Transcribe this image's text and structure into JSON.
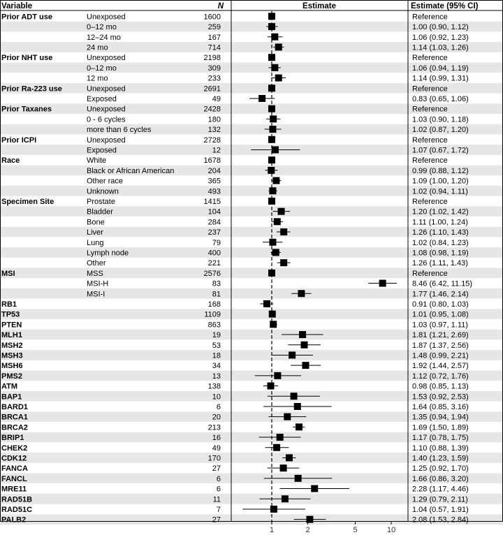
{
  "header": {
    "variable": "Variable",
    "n": "N",
    "estimate": "Estimate",
    "ci": "Estimate (95% CI)"
  },
  "colors": {
    "band": "#e6e6e6",
    "marker": "#000000",
    "line": "#000000"
  },
  "chart_data": {
    "type": "forest",
    "x_scale": "log",
    "reference_line": 1,
    "xlim": [
      0.6,
      12
    ],
    "x_ticks": [
      1,
      2,
      5,
      10
    ],
    "rows": [
      {
        "group": "Prior ADT use",
        "level": "Unexposed",
        "n": "1600",
        "est": 1.0,
        "lo": null,
        "hi": null,
        "ci": "Reference"
      },
      {
        "group": "",
        "level": "0–12 mo",
        "n": "259",
        "est": 1.0,
        "lo": 0.9,
        "hi": 1.12,
        "ci": "1.00 (0.90, 1.12)"
      },
      {
        "group": "",
        "level": "12–24 mo",
        "n": "167",
        "est": 1.06,
        "lo": 0.92,
        "hi": 1.23,
        "ci": "1.06 (0.92, 1.23)"
      },
      {
        "group": "",
        "level": "24 mo",
        "n": "714",
        "est": 1.14,
        "lo": 1.03,
        "hi": 1.26,
        "ci": "1.14 (1.03, 1.26)"
      },
      {
        "group": "Prior NHT use",
        "level": "Unexposed",
        "n": "2198",
        "est": 1.0,
        "lo": null,
        "hi": null,
        "ci": "Reference"
      },
      {
        "group": "",
        "level": "0–12 mo",
        "n": "309",
        "est": 1.06,
        "lo": 0.94,
        "hi": 1.19,
        "ci": "1.06 (0.94, 1.19)"
      },
      {
        "group": "",
        "level": "12 mo",
        "n": "233",
        "est": 1.14,
        "lo": 0.99,
        "hi": 1.31,
        "ci": "1.14 (0.99, 1.31)"
      },
      {
        "group": "Prior Ra-223 use",
        "level": "Unexposed",
        "n": "2691",
        "est": 1.0,
        "lo": null,
        "hi": null,
        "ci": "Reference"
      },
      {
        "group": "",
        "level": "Exposed",
        "n": "49",
        "est": 0.83,
        "lo": 0.65,
        "hi": 1.06,
        "ci": "0.83 (0.65, 1.06)"
      },
      {
        "group": "Prior Taxanes",
        "level": "Unexposed",
        "n": "2428",
        "est": 1.0,
        "lo": null,
        "hi": null,
        "ci": "Reference"
      },
      {
        "group": "",
        "level": "0 - 6 cycles",
        "n": "180",
        "est": 1.03,
        "lo": 0.9,
        "hi": 1.18,
        "ci": "1.03 (0.90, 1.18)"
      },
      {
        "group": "",
        "level": "more than 6 cycles",
        "n": "132",
        "est": 1.02,
        "lo": 0.87,
        "hi": 1.2,
        "ci": "1.02 (0.87, 1.20)"
      },
      {
        "group": "Prior ICPI",
        "level": "Unexposed",
        "n": "2728",
        "est": 1.0,
        "lo": null,
        "hi": null,
        "ci": "Reference"
      },
      {
        "group": "",
        "level": "Exposed",
        "n": "12",
        "est": 1.07,
        "lo": 0.67,
        "hi": 1.72,
        "ci": "1.07 (0.67, 1.72)"
      },
      {
        "group": "Race",
        "level": "White",
        "n": "1678",
        "est": 1.0,
        "lo": null,
        "hi": null,
        "ci": "Reference"
      },
      {
        "group": "",
        "level": "Black or African American",
        "n": "204",
        "est": 0.99,
        "lo": 0.88,
        "hi": 1.12,
        "ci": "0.99 (0.88, 1.12)"
      },
      {
        "group": "",
        "level": "Other race",
        "n": "365",
        "est": 1.09,
        "lo": 1.0,
        "hi": 1.2,
        "ci": "1.09 (1.00, 1.20)"
      },
      {
        "group": "",
        "level": "Unknown",
        "n": "493",
        "est": 1.02,
        "lo": 0.94,
        "hi": 1.11,
        "ci": "1.02 (0.94, 1.11)"
      },
      {
        "group": "Specimen Site",
        "level": "Prostate",
        "n": "1415",
        "est": 1.0,
        "lo": null,
        "hi": null,
        "ci": "Reference"
      },
      {
        "group": "",
        "level": "Bladder",
        "n": "104",
        "est": 1.2,
        "lo": 1.02,
        "hi": 1.42,
        "ci": "1.20 (1.02, 1.42)"
      },
      {
        "group": "",
        "level": "Bone",
        "n": "284",
        "est": 1.11,
        "lo": 1.0,
        "hi": 1.24,
        "ci": "1.11 (1.00, 1.24)"
      },
      {
        "group": "",
        "level": "Liver",
        "n": "237",
        "est": 1.26,
        "lo": 1.1,
        "hi": 1.43,
        "ci": "1.26 (1.10, 1.43)"
      },
      {
        "group": "",
        "level": "Lung",
        "n": "79",
        "est": 1.02,
        "lo": 0.84,
        "hi": 1.23,
        "ci": "1.02 (0.84, 1.23)"
      },
      {
        "group": "",
        "level": "Lymph node",
        "n": "400",
        "est": 1.08,
        "lo": 0.98,
        "hi": 1.19,
        "ci": "1.08 (0.98, 1.19)"
      },
      {
        "group": "",
        "level": "Other",
        "n": "221",
        "est": 1.26,
        "lo": 1.11,
        "hi": 1.43,
        "ci": "1.26 (1.11, 1.43)"
      },
      {
        "group": "MSI",
        "level": "MSS",
        "n": "2576",
        "est": 1.0,
        "lo": null,
        "hi": null,
        "ci": "Reference"
      },
      {
        "group": "",
        "level": "MSI-H",
        "n": "83",
        "est": 8.46,
        "lo": 6.42,
        "hi": 11.15,
        "ci": "8.46 (6.42, 11.15)"
      },
      {
        "group": "",
        "level": "MSI-I",
        "n": "81",
        "est": 1.77,
        "lo": 1.46,
        "hi": 2.14,
        "ci": "1.77 (1.46, 2.14)"
      },
      {
        "group": "RB1",
        "level": "",
        "n": "168",
        "est": 0.91,
        "lo": 0.8,
        "hi": 1.03,
        "ci": "0.91 (0.80, 1.03)"
      },
      {
        "group": "TP53",
        "level": "",
        "n": "1109",
        "est": 1.01,
        "lo": 0.95,
        "hi": 1.08,
        "ci": "1.01 (0.95, 1.08)"
      },
      {
        "group": "PTEN",
        "level": "",
        "n": "863",
        "est": 1.03,
        "lo": 0.97,
        "hi": 1.11,
        "ci": "1.03 (0.97, 1.11)"
      },
      {
        "group": "MLH1",
        "level": "",
        "n": "19",
        "est": 1.81,
        "lo": 1.21,
        "hi": 2.69,
        "ci": "1.81 (1.21, 2.69)"
      },
      {
        "group": "MSH2",
        "level": "",
        "n": "53",
        "est": 1.87,
        "lo": 1.37,
        "hi": 2.56,
        "ci": "1.87 (1.37, 2.56)"
      },
      {
        "group": "MSH3",
        "level": "",
        "n": "18",
        "est": 1.48,
        "lo": 0.99,
        "hi": 2.21,
        "ci": "1.48 (0.99, 2.21)"
      },
      {
        "group": "MSH6",
        "level": "",
        "n": "34",
        "est": 1.92,
        "lo": 1.44,
        "hi": 2.57,
        "ci": "1.92 (1.44, 2.57)"
      },
      {
        "group": "PMS2",
        "level": "",
        "n": "13",
        "est": 1.12,
        "lo": 0.72,
        "hi": 1.76,
        "ci": "1.12 (0.72, 1.76)"
      },
      {
        "group": "ATM",
        "level": "",
        "n": "138",
        "est": 0.98,
        "lo": 0.85,
        "hi": 1.13,
        "ci": "0.98 (0.85, 1.13)"
      },
      {
        "group": "BAP1",
        "level": "",
        "n": "10",
        "est": 1.53,
        "lo": 0.92,
        "hi": 2.53,
        "ci": "1.53 (0.92, 2.53)"
      },
      {
        "group": "BARD1",
        "level": "",
        "n": "6",
        "est": 1.64,
        "lo": 0.85,
        "hi": 3.16,
        "ci": "1.64 (0.85, 3.16)"
      },
      {
        "group": "BRCA1",
        "level": "",
        "n": "20",
        "est": 1.35,
        "lo": 0.94,
        "hi": 1.94,
        "ci": "1.35 (0.94, 1.94)"
      },
      {
        "group": "BRCA2",
        "level": "",
        "n": "213",
        "est": 1.69,
        "lo": 1.5,
        "hi": 1.89,
        "ci": "1.69 (1.50, 1.89)"
      },
      {
        "group": "BRIP1",
        "level": "",
        "n": "16",
        "est": 1.17,
        "lo": 0.78,
        "hi": 1.75,
        "ci": "1.17 (0.78, 1.75)"
      },
      {
        "group": "CHEK2",
        "level": "",
        "n": "49",
        "est": 1.1,
        "lo": 0.88,
        "hi": 1.39,
        "ci": "1.10 (0.88, 1.39)"
      },
      {
        "group": "CDK12",
        "level": "",
        "n": "170",
        "est": 1.4,
        "lo": 1.23,
        "hi": 1.59,
        "ci": "1.40 (1.23, 1.59)"
      },
      {
        "group": "FANCA",
        "level": "",
        "n": "27",
        "est": 1.25,
        "lo": 0.92,
        "hi": 1.7,
        "ci": "1.25 (0.92, 1.70)"
      },
      {
        "group": "FANCL",
        "level": "",
        "n": "6",
        "est": 1.66,
        "lo": 0.86,
        "hi": 3.2,
        "ci": "1.66 (0.86, 3.20)"
      },
      {
        "group": "MRE11",
        "level": "",
        "n": "6",
        "est": 2.28,
        "lo": 1.17,
        "hi": 4.46,
        "ci": "2.28 (1.17, 4.46)"
      },
      {
        "group": "RAD51B",
        "level": "",
        "n": "11",
        "est": 1.29,
        "lo": 0.79,
        "hi": 2.11,
        "ci": "1.29 (0.79, 2.11)"
      },
      {
        "group": "RAD51C",
        "level": "",
        "n": "7",
        "est": 1.04,
        "lo": 0.57,
        "hi": 1.91,
        "ci": "1.04 (0.57, 1.91)"
      },
      {
        "group": "PALB2",
        "level": "",
        "n": "27",
        "est": 2.08,
        "lo": 1.53,
        "hi": 2.84,
        "ci": "2.08 (1.53, 2.84)"
      }
    ]
  }
}
